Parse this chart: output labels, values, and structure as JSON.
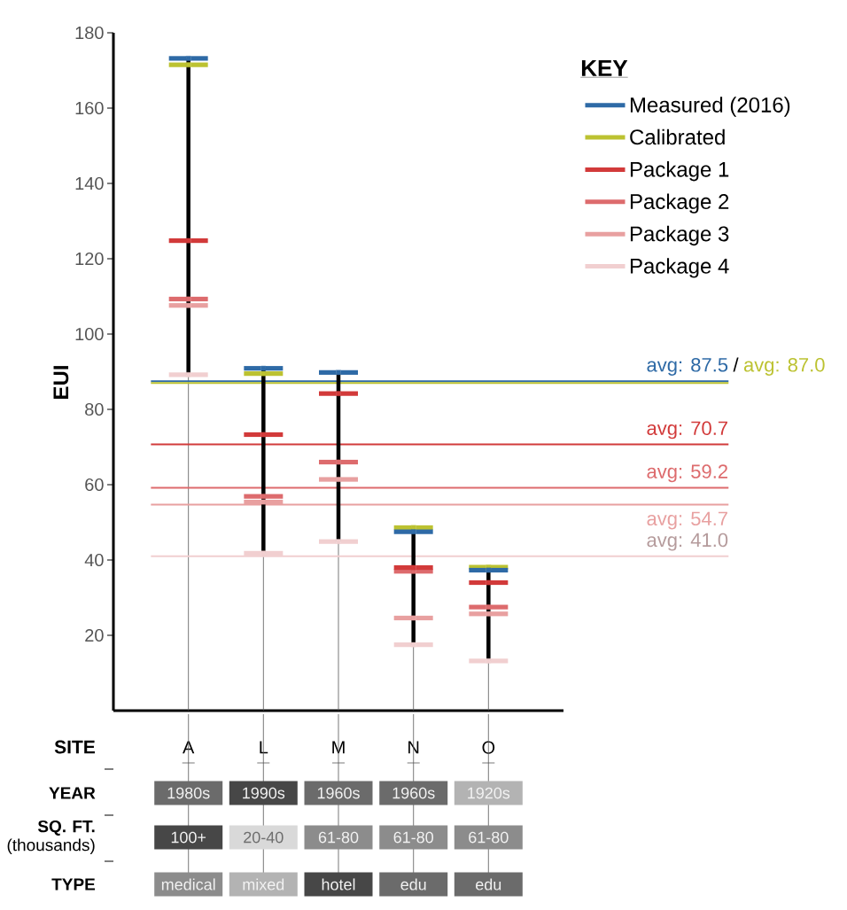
{
  "chart_data": [
    {
      "type": "scatter",
      "marker": "square",
      "ylabel": "EUI",
      "xlabel": "SITE",
      "legend_title": "KEY",
      "legend": "top right",
      "categories": [
        "A",
        "L",
        "M",
        "N",
        "O"
      ],
      "ylim": [
        0,
        180
      ],
      "yticks": [
        20,
        40,
        60,
        80,
        100,
        120,
        140,
        160,
        180
      ],
      "series": [
        {
          "name": "Measured (2016)",
          "color": "#2e6aa6",
          "values": [
            173.2,
            90.9,
            89.8,
            47.5,
            37.3
          ]
        },
        {
          "name": "Calibrated",
          "color": "#bcc231",
          "values": [
            171.5,
            89.5,
            null,
            48.6,
            38.1
          ]
        },
        {
          "name": "Package 1",
          "color": "#d23a3a",
          "values": [
            124.8,
            73.3,
            84.2,
            38.0,
            34.0
          ]
        },
        {
          "name": "Package 2",
          "color": "#dd6b6d",
          "values": [
            109.3,
            56.9,
            66.0,
            37.0,
            27.5
          ]
        },
        {
          "name": "Package 3",
          "color": "#e8a0a0",
          "values": [
            107.6,
            55.4,
            61.4,
            24.6,
            25.7
          ]
        },
        {
          "name": "Package 4",
          "color": "#f1cfd0",
          "values": [
            89.2,
            41.8,
            44.9,
            17.5,
            13.2
          ]
        }
      ],
      "ref_lines": [
        {
          "axis": "y",
          "value": 87.5,
          "label": "avg: 87.5",
          "color": "#2e6aa6"
        },
        {
          "axis": "y",
          "value": 87.0,
          "label": "avg: 87.0",
          "color": "#bcc231"
        },
        {
          "axis": "y",
          "value": 70.7,
          "label": "avg: 70.7",
          "color": "#d23a3a"
        },
        {
          "axis": "y",
          "value": 59.2,
          "label": "avg: 59.2",
          "color": "#dd6b6d"
        },
        {
          "axis": "y",
          "value": 54.7,
          "label": "avg: 54.7",
          "color": "#e8a0a0"
        },
        {
          "axis": "y",
          "value": 41.0,
          "label": "avg: 41.0",
          "color": "#f1cfd0"
        }
      ],
      "annotations": [
        "/"
      ]
    },
    {
      "type": "other",
      "y_categories": [
        "**YEAR**",
        "**SQ. FT.** (thousands)",
        "**TYPE**"
      ],
      "cell_labels": [
        [
          "1980s",
          "1990s",
          "1960s",
          "1960s",
          "1920s"
        ],
        [
          "100+",
          "20-40",
          "61-80",
          "61-80",
          "61-80"
        ],
        [
          "medical",
          "mixed",
          "hotel",
          "edu",
          "edu"
        ]
      ],
      "colors": [
        [
          "#6b6b6b",
          "#474747",
          "#6b6b6b",
          "#6b6b6b",
          "#b3b3b3"
        ],
        [
          "#474747",
          "#d9d9d9",
          "#8c8c8c",
          "#8c8c8c",
          "#8c8c8c"
        ],
        [
          "#8c8c8c",
          "#b3b3b3",
          "#474747",
          "#6b6b6b",
          "#6b6b6b"
        ]
      ]
    }
  ]
}
